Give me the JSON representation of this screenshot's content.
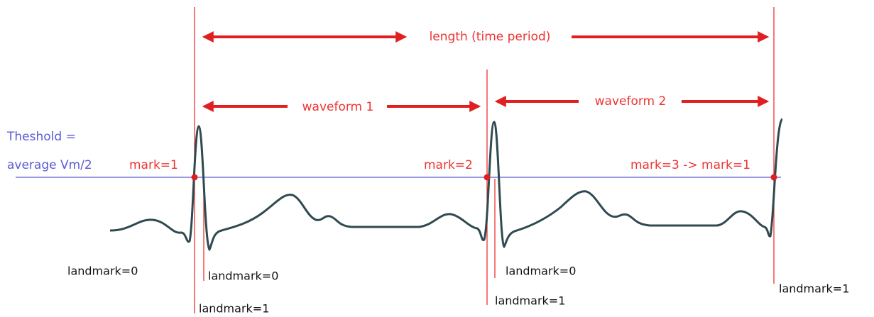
{
  "arrows": {
    "length": "length (time period)",
    "waveform_1": "waveform 1",
    "waveform_2": "waveform 2"
  },
  "threshold": {
    "line1": "Theshold =",
    "line2": "average Vm/2"
  },
  "marks": [
    "mark=1",
    "mark=2",
    "mark=3 -> mark=1"
  ],
  "landmarks": [
    "landmark=0",
    "landmark=0",
    "landmark=1",
    "landmark=0",
    "landmark=1",
    "landmark=1"
  ]
}
